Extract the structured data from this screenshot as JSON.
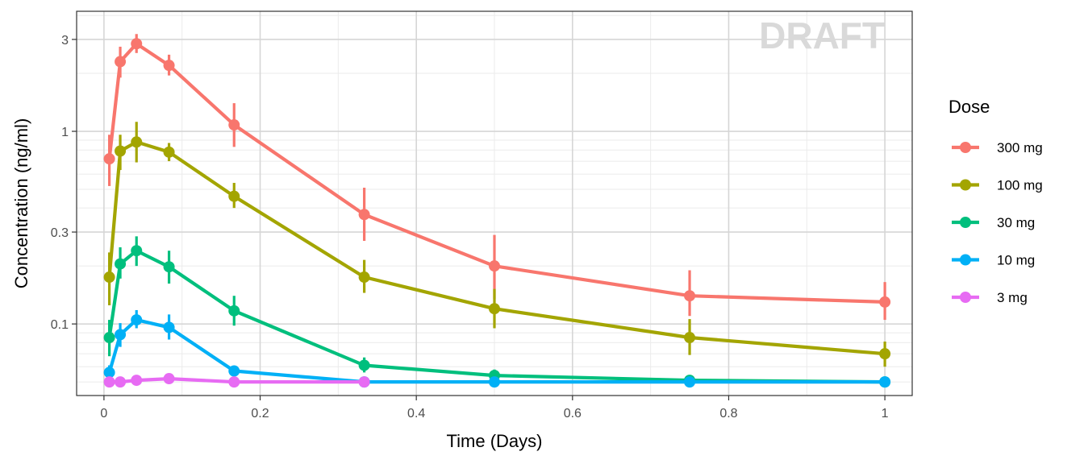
{
  "chart_data": {
    "type": "line",
    "watermark": "DRAFT",
    "xlabel": "Time (Days)",
    "ylabel": "Concentration (ng/ml)",
    "x_scale": "linear",
    "y_scale": "log10",
    "xlim": [
      -0.035,
      1.035
    ],
    "ylim": [
      0.0425,
      4.2
    ],
    "x_ticks": [
      0,
      0.2,
      0.4,
      0.6,
      0.8,
      1
    ],
    "x_tick_labels": [
      "0",
      "0.2",
      "0.4",
      "0.6",
      "0.8",
      "1"
    ],
    "y_ticks": [
      0.1,
      0.3,
      1,
      3
    ],
    "y_tick_labels": [
      "0.1",
      "0.3",
      "1",
      "3"
    ],
    "grid": true,
    "legend_title": "Dose",
    "legend_position": "right",
    "series": [
      {
        "name": "300 mg",
        "color": "#F8766D",
        "x": [
          0.00694,
          0.02083,
          0.04167,
          0.08333,
          0.16667,
          0.33333,
          0.5,
          0.75,
          1
        ],
        "y": [
          0.72,
          2.3,
          2.85,
          2.2,
          1.08,
          0.37,
          0.2,
          0.14,
          0.13
        ],
        "err_low": [
          0.52,
          1.9,
          2.55,
          1.95,
          0.83,
          0.27,
          0.135,
          0.11,
          0.105
        ],
        "err_high": [
          0.96,
          2.75,
          3.2,
          2.5,
          1.4,
          0.51,
          0.29,
          0.19,
          0.165
        ]
      },
      {
        "name": "100 mg",
        "color": "#A3A500",
        "x": [
          0.00694,
          0.02083,
          0.04167,
          0.08333,
          0.16667,
          0.33333,
          0.5,
          0.75,
          1
        ],
        "y": [
          0.175,
          0.79,
          0.88,
          0.78,
          0.46,
          0.175,
          0.12,
          0.085,
          0.07
        ],
        "err_low": [
          0.125,
          0.63,
          0.69,
          0.7,
          0.4,
          0.145,
          0.095,
          0.069,
          0.06
        ],
        "err_high": [
          0.235,
          0.96,
          1.12,
          0.87,
          0.54,
          0.215,
          0.152,
          0.106,
          0.081
        ]
      },
      {
        "name": "30 mg",
        "color": "#00BF7D",
        "x": [
          0.00694,
          0.02083,
          0.04167,
          0.08333,
          0.16667,
          0.33333,
          0.5,
          0.75,
          1
        ],
        "y": [
          0.085,
          0.205,
          0.24,
          0.198,
          0.117,
          0.061,
          0.054,
          0.051,
          0.05
        ],
        "err_low": [
          0.068,
          0.172,
          0.2,
          0.162,
          0.098,
          0.056,
          0.052,
          0.049,
          0.048
        ],
        "err_high": [
          0.105,
          0.25,
          0.285,
          0.24,
          0.14,
          0.067,
          0.058,
          0.053,
          0.052
        ]
      },
      {
        "name": "10 mg",
        "color": "#00B0F6",
        "x": [
          0.00694,
          0.02083,
          0.04167,
          0.08333,
          0.16667,
          0.33333,
          0.5,
          0.75,
          1
        ],
        "y": [
          0.056,
          0.088,
          0.105,
          0.096,
          0.057,
          0.05,
          0.05,
          0.05,
          0.05
        ],
        "err_low": [
          0.052,
          0.076,
          0.095,
          0.083,
          0.054,
          0.049,
          0.049,
          0.049,
          0.049
        ],
        "err_high": [
          0.061,
          0.101,
          0.118,
          0.112,
          0.06,
          0.051,
          0.051,
          0.051,
          0.051
        ]
      },
      {
        "name": "3 mg",
        "color": "#E76BF3",
        "x": [
          0.00694,
          0.02083,
          0.04167,
          0.08333,
          0.16667,
          0.33333
        ],
        "y": [
          0.05,
          0.05,
          0.051,
          0.052,
          0.05,
          0.05
        ],
        "err_low": [
          0.049,
          0.049,
          0.05,
          0.051,
          0.049,
          0.049
        ],
        "err_high": [
          0.051,
          0.051,
          0.053,
          0.054,
          0.051,
          0.051
        ]
      }
    ]
  }
}
